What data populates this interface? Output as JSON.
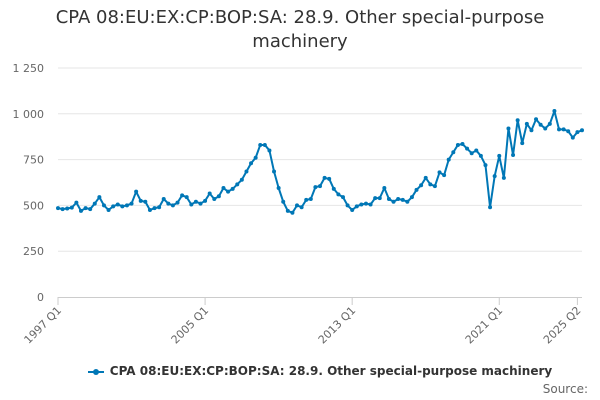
{
  "chart_data": {
    "type": "line",
    "title": "CPA 08:EU:EX:CP:BOP:SA: 28.9. Other special-purpose machinery",
    "xlabel": "",
    "ylabel": "",
    "ylim": [
      0,
      1250
    ],
    "yticks": [
      0,
      250,
      500,
      750,
      1000,
      1250
    ],
    "ytick_labels": [
      "0",
      "250",
      "500",
      "750",
      "1 000",
      "1 250"
    ],
    "xtick_labels": [
      "1997 Q1",
      "2005 Q1",
      "2013 Q1",
      "2021 Q1",
      "2025 Q2"
    ],
    "xtick_index": [
      0,
      32,
      64,
      96,
      113
    ],
    "grid": true,
    "legend_position": "bottom",
    "color": "#0077b6",
    "series": [
      {
        "name": "CPA 08:EU:EX:CP:BOP:SA: 28.9. Other special-purpose machinery",
        "values": [
          485,
          480,
          483,
          488,
          515,
          470,
          485,
          480,
          510,
          545,
          500,
          475,
          495,
          505,
          495,
          500,
          510,
          575,
          525,
          520,
          475,
          485,
          490,
          535,
          510,
          500,
          515,
          555,
          545,
          505,
          520,
          510,
          525,
          565,
          535,
          550,
          595,
          575,
          590,
          615,
          640,
          685,
          730,
          760,
          830,
          830,
          800,
          685,
          595,
          520,
          470,
          460,
          500,
          490,
          530,
          535,
          600,
          605,
          650,
          645,
          590,
          560,
          545,
          500,
          475,
          495,
          505,
          510,
          505,
          540,
          540,
          595,
          535,
          520,
          535,
          530,
          520,
          545,
          585,
          610,
          650,
          615,
          605,
          680,
          665,
          750,
          790,
          830,
          835,
          810,
          785,
          800,
          770,
          720,
          490,
          660,
          770,
          650,
          920,
          775,
          965,
          840,
          945,
          910,
          970,
          940,
          920,
          945,
          1015,
          915,
          915,
          905,
          870,
          900,
          910
        ]
      }
    ]
  },
  "legend": {
    "label": "CPA 08:EU:EX:CP:BOP:SA: 28.9. Other special-purpose machinery"
  },
  "credits": "Source:"
}
